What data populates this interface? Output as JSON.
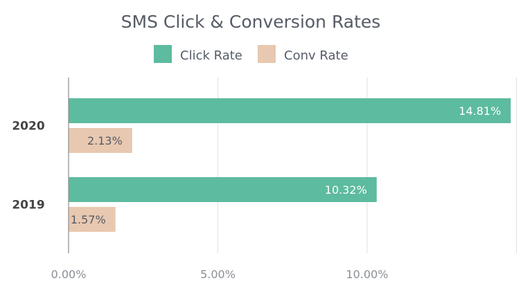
{
  "chart_data": {
    "type": "bar",
    "orientation": "horizontal",
    "title": "SMS Click & Conversion Rates",
    "categories": [
      "2020",
      "2019"
    ],
    "series": [
      {
        "name": "Click Rate",
        "values": [
          14.81,
          10.32
        ],
        "labels": [
          "14.81%",
          "10.32%"
        ],
        "color": "#5dbb9f"
      },
      {
        "name": "Conv Rate",
        "values": [
          2.13,
          1.57
        ],
        "labels": [
          "2.13%",
          "1.57%"
        ],
        "color": "#e8c8b0"
      }
    ],
    "x_ticks": [
      0,
      5,
      10
    ],
    "x_tick_labels": [
      "0.00%",
      "5.00%",
      "10.00%"
    ],
    "xlim": [
      0,
      15
    ],
    "grid": true,
    "legend_position": "top"
  }
}
